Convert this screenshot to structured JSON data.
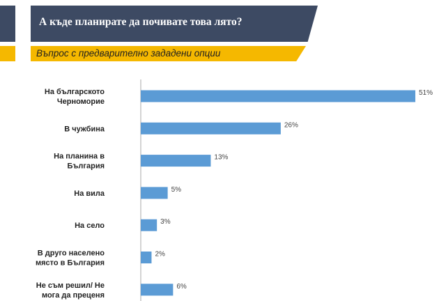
{
  "header": {
    "title": "А къде планирате да почивате това лято?",
    "subtitle": "Въпрос с предварително зададени опции"
  },
  "colors": {
    "header_band": "#3d4a63",
    "subtitle_band": "#f5b800",
    "bar": "#5b9bd5",
    "axis": "#aaaaaa"
  },
  "chart_data": {
    "type": "bar",
    "orientation": "horizontal",
    "categories": [
      [
        "На българското",
        "Черноморие"
      ],
      [
        "В чужбина"
      ],
      [
        "На планина в",
        "България"
      ],
      [
        "На вила"
      ],
      [
        "На село"
      ],
      [
        "В друго населено",
        "място в България"
      ],
      [
        "Не съм решил/ Не",
        "мога да преценя"
      ]
    ],
    "values": [
      51,
      26,
      13,
      5,
      3,
      2,
      6
    ],
    "value_labels": [
      "51%",
      "26%",
      "13%",
      "5%",
      "3%",
      "2%",
      "6%"
    ],
    "unit": "%",
    "xlim": [
      0,
      51
    ],
    "grid": false
  }
}
